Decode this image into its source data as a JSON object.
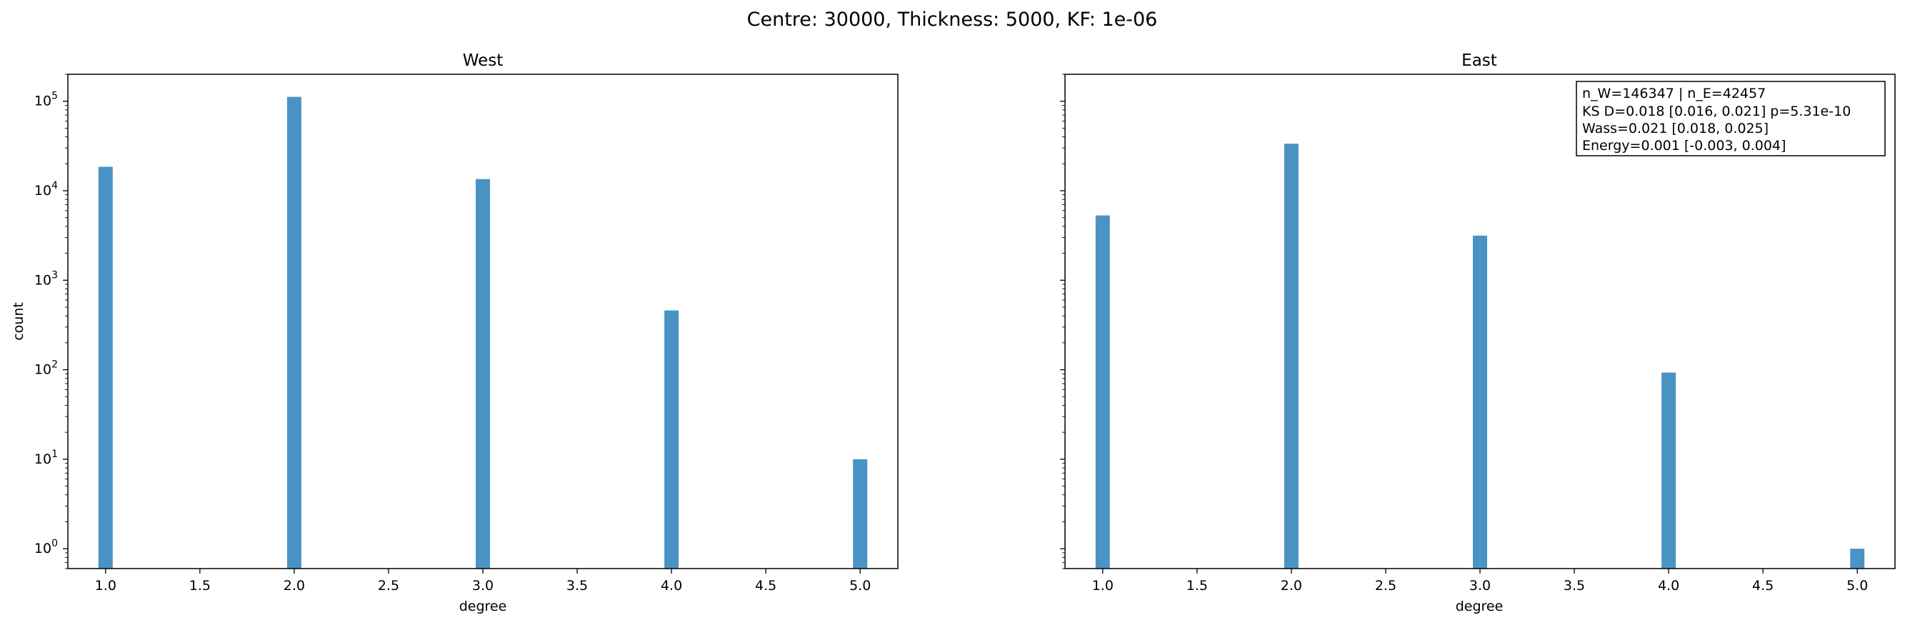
{
  "figure_title": "Centre: 30000, Thickness: 5000, KF: 1e-06",
  "chart_data": [
    {
      "type": "bar",
      "title": "West",
      "xlabel": "degree",
      "ylabel": "count",
      "yscale": "log",
      "xlim": [
        0.8,
        5.2
      ],
      "ylim": [
        0.6,
        200000
      ],
      "x_ticks": [
        "1.0",
        "1.5",
        "2.0",
        "2.5",
        "3.0",
        "3.5",
        "4.0",
        "4.5",
        "5.0"
      ],
      "y_ticks": [
        {
          "base": "10",
          "exp": "0"
        },
        {
          "base": "10",
          "exp": "1"
        },
        {
          "base": "10",
          "exp": "2"
        },
        {
          "base": "10",
          "exp": "3"
        },
        {
          "base": "10",
          "exp": "4"
        },
        {
          "base": "10",
          "exp": "5"
        }
      ],
      "x": [
        1,
        2,
        3,
        4,
        5
      ],
      "values": [
        18500,
        112000,
        13500,
        460,
        10
      ],
      "color": "#4a93c5"
    },
    {
      "type": "bar",
      "title": "East",
      "xlabel": "degree",
      "ylabel": "",
      "yscale": "log",
      "xlim": [
        0.8,
        5.2
      ],
      "ylim": [
        0.6,
        200000
      ],
      "x_ticks": [
        "1.0",
        "1.5",
        "2.0",
        "2.5",
        "3.0",
        "3.5",
        "4.0",
        "4.5",
        "5.0"
      ],
      "x": [
        1,
        2,
        3,
        4,
        5
      ],
      "values": [
        5300,
        33500,
        3150,
        93,
        1
      ],
      "color": "#4a93c5",
      "annotation": [
        "n_W=146347 | n_E=42457",
        "KS D=0.018 [0.016, 0.021]  p=5.31e-10",
        "Wass=0.021 [0.018, 0.025]",
        "Energy=0.001 [-0.003, 0.004]"
      ]
    }
  ]
}
